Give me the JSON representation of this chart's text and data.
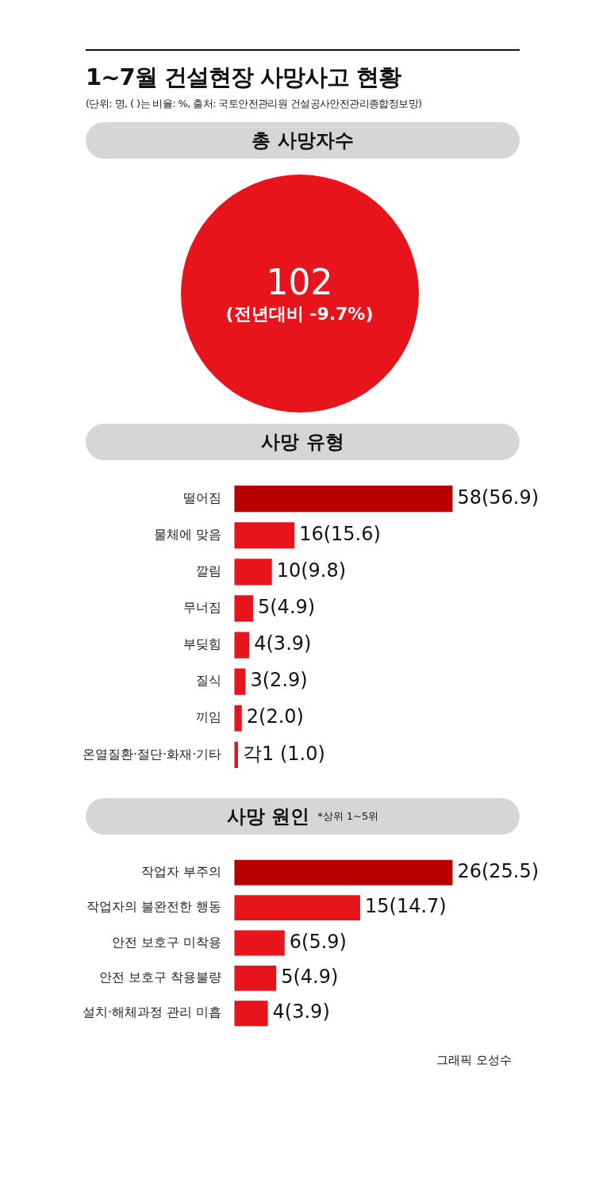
{
  "chart_data": [
    {
      "type": "other",
      "title": "1~7월 건설현장 사망사고 현황",
      "subtitle": "(단위: 명, ( )는 비율: %, 출처: 국토안전관리원 건설공사안전관리종합정보망)",
      "annotations": [
        "총 사망자수",
        "102",
        "(전년대비 -9.7%)"
      ]
    },
    {
      "type": "bar",
      "orientation": "horizontal",
      "title": "사망 유형",
      "categories": [
        "떨어짐",
        "물체에 맞음",
        "깔림",
        "무너짐",
        "부딪힘",
        "질식",
        "끼임",
        "온열질환·절단·화재·기타"
      ],
      "values": [
        58,
        16,
        10,
        5,
        4,
        3,
        2,
        1
      ],
      "colors": [
        "#b80000",
        "#e8141b",
        "#e8141b",
        "#e8141b",
        "#e8141b",
        "#e8141b",
        "#e8141b",
        "#e8141b"
      ],
      "value_labels": [
        "58(56.9)",
        "16(15.6)",
        "10(9.8)",
        "5(4.9)",
        "4(3.9)",
        "3(2.9)",
        "2(2.0)",
        "각1 (1.0)"
      ]
    },
    {
      "type": "bar",
      "orientation": "horizontal",
      "title": "사망 원인",
      "subtitle": "*상위 1~5위",
      "categories": [
        "작업자 부주의",
        "작업자의 불완전한 행동",
        "안전 보호구 미착용",
        "안전 보호구 착용불량",
        "설치·해체과정 관리 미흡"
      ],
      "values": [
        26,
        15,
        6,
        5,
        4
      ],
      "colors": [
        "#b80000",
        "#e8141b",
        "#e8141b",
        "#e8141b",
        "#e8141b"
      ],
      "value_labels": [
        "26(25.5)",
        "15(14.7)",
        "6(5.9)",
        "5(4.9)",
        "4(3.9)"
      ],
      "annotations": [
        "그래픽 오성수"
      ]
    }
  ]
}
